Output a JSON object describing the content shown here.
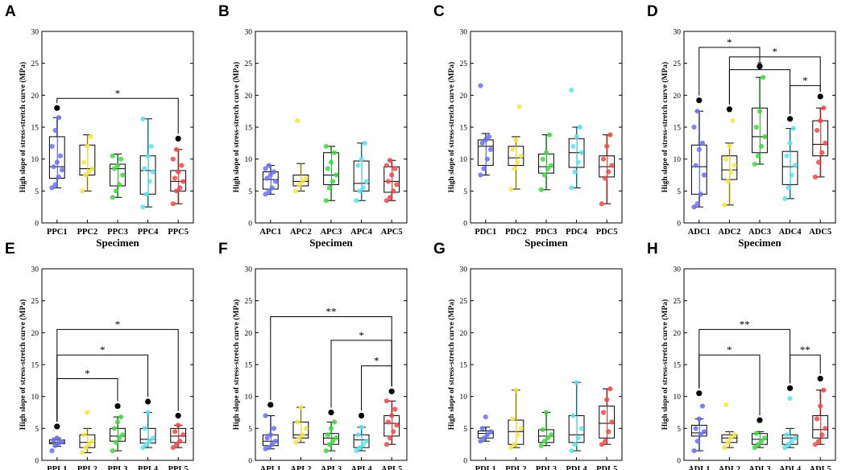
{
  "figure": {
    "xlabel": "Specimen",
    "ylabel": "High slope of stress-stretch curve (MPa)",
    "ylim": [
      0,
      30
    ],
    "yticks": [
      0,
      5,
      10,
      15,
      20,
      25,
      30
    ],
    "series_colors": [
      "#3d4fd8",
      "#d9c800",
      "#16a816",
      "#16b8c4",
      "#d21e1e"
    ],
    "point_colors": [
      "#6b6ff0",
      "#f2e64a",
      "#45d645",
      "#5fe3ea",
      "#ea4a4a"
    ]
  },
  "chart_data": [
    {
      "panel": "A",
      "type": "box",
      "categories": [
        "PPC1",
        "PPC2",
        "PPC3",
        "PPC4",
        "PPC5"
      ],
      "series": [
        {
          "name": "PPC1",
          "whisker_low": 5.5,
          "q1": 7.0,
          "median": 8.8,
          "q3": 13.5,
          "whisker_high": 16.5,
          "outliers": [
            18.0
          ],
          "points": [
            5.5,
            6.0,
            7.2,
            8.3,
            8.8,
            9.5,
            10.5,
            12.0,
            14.5,
            16.5
          ]
        },
        {
          "name": "PPC2",
          "whisker_low": 5.0,
          "q1": 7.5,
          "median": 8.5,
          "q3": 12.2,
          "whisker_high": 13.8,
          "outliers": [],
          "points": [
            5.0,
            7.5,
            8.0,
            8.5,
            9.5,
            12.0,
            13.5
          ]
        },
        {
          "name": "PPC3",
          "whisker_low": 4.0,
          "q1": 5.8,
          "median": 8.5,
          "q3": 9.2,
          "whisker_high": 10.8,
          "outliers": [],
          "points": [
            4.0,
            5.0,
            6.0,
            7.5,
            8.5,
            9.0,
            10.0,
            10.5
          ]
        },
        {
          "name": "PPC4",
          "whisker_low": 2.5,
          "q1": 4.5,
          "median": 8.2,
          "q3": 10.5,
          "whisker_high": 16.3,
          "outliers": [],
          "points": [
            2.5,
            4.5,
            6.5,
            8.0,
            8.5,
            10.5,
            12.0,
            16.3
          ]
        },
        {
          "name": "PPC5",
          "whisker_low": 3.0,
          "q1": 5.0,
          "median": 6.5,
          "q3": 8.2,
          "whisker_high": 11.5,
          "outliers": [
            13.2
          ],
          "points": [
            3.0,
            5.0,
            5.5,
            6.5,
            7.0,
            8.0,
            9.0,
            10.0,
            11.5
          ]
        }
      ],
      "significance": [
        {
          "from": 1,
          "to": 5,
          "y": 19.5,
          "label": "*"
        }
      ]
    },
    {
      "panel": "B",
      "type": "box",
      "categories": [
        "APC1",
        "APC2",
        "APC3",
        "APC4",
        "APC5"
      ],
      "series": [
        {
          "name": "APC1",
          "whisker_low": 4.5,
          "q1": 5.3,
          "median": 6.8,
          "q3": 8.0,
          "whisker_high": 9.0,
          "outliers": [],
          "points": [
            4.5,
            5.0,
            5.5,
            6.5,
            7.0,
            7.5,
            8.0,
            8.5,
            9.0
          ]
        },
        {
          "name": "APC2",
          "whisker_low": 5.0,
          "q1": 5.8,
          "median": 6.5,
          "q3": 7.5,
          "whisker_high": 9.3,
          "outliers": [],
          "points": [
            5.0,
            6.0,
            6.5,
            7.0,
            16.0
          ]
        },
        {
          "name": "APC3",
          "whisker_low": 3.5,
          "q1": 6.0,
          "median": 7.5,
          "q3": 11.0,
          "whisker_high": 12.0,
          "outliers": [],
          "points": [
            3.5,
            5.5,
            6.5,
            7.5,
            8.5,
            9.5,
            11.0,
            12.0
          ]
        },
        {
          "name": "APC4",
          "whisker_low": 3.5,
          "q1": 5.0,
          "median": 6.2,
          "q3": 9.7,
          "whisker_high": 12.5,
          "outliers": [],
          "points": [
            3.5,
            5.0,
            5.5,
            6.5,
            9.0,
            10.0,
            12.5
          ]
        },
        {
          "name": "APC5",
          "whisker_low": 3.5,
          "q1": 4.8,
          "median": 6.5,
          "q3": 8.8,
          "whisker_high": 9.8,
          "outliers": [],
          "points": [
            3.5,
            4.0,
            5.0,
            6.0,
            6.5,
            7.5,
            8.5,
            9.0,
            9.8
          ]
        }
      ],
      "significance": []
    },
    {
      "panel": "C",
      "type": "box",
      "categories": [
        "PDC1",
        "PDC2",
        "PDC3",
        "PDC4",
        "PDC5"
      ],
      "series": [
        {
          "name": "PDC1",
          "whisker_low": 7.5,
          "q1": 9.0,
          "median": 12.0,
          "q3": 13.0,
          "whisker_high": 14.0,
          "outliers": [],
          "points": [
            7.5,
            8.5,
            10.0,
            11.5,
            12.5,
            13.0,
            13.5,
            21.5
          ]
        },
        {
          "name": "PDC2",
          "whisker_low": 5.3,
          "q1": 9.0,
          "median": 10.2,
          "q3": 12.0,
          "whisker_high": 13.5,
          "outliers": [],
          "points": [
            5.3,
            8.5,
            9.5,
            10.5,
            11.5,
            13.0,
            18.2
          ]
        },
        {
          "name": "PDC3",
          "whisker_low": 5.2,
          "q1": 7.8,
          "median": 8.8,
          "q3": 10.8,
          "whisker_high": 13.8,
          "outliers": [],
          "points": [
            5.2,
            7.5,
            8.5,
            9.0,
            10.0,
            11.0,
            13.8
          ]
        },
        {
          "name": "PDC4",
          "whisker_low": 5.5,
          "q1": 8.7,
          "median": 11.0,
          "q3": 13.2,
          "whisker_high": 15.0,
          "outliers": [],
          "points": [
            5.5,
            8.0,
            9.5,
            11.0,
            12.0,
            13.5,
            15.0,
            20.8
          ]
        },
        {
          "name": "PDC5",
          "whisker_low": 3.0,
          "q1": 7.2,
          "median": 8.8,
          "q3": 10.5,
          "whisker_high": 13.8,
          "outliers": [],
          "points": [
            3.0,
            7.0,
            8.0,
            9.0,
            10.0,
            12.0,
            13.8
          ]
        }
      ],
      "significance": []
    },
    {
      "panel": "D",
      "type": "box",
      "categories": [
        "ADC1",
        "ADC2",
        "ADC3",
        "ADC4",
        "ADC5"
      ],
      "series": [
        {
          "name": "ADC1",
          "whisker_low": 2.5,
          "q1": 4.5,
          "median": 8.8,
          "q3": 12.2,
          "whisker_high": 17.5,
          "outliers": [
            19.2
          ],
          "points": [
            2.5,
            3.0,
            4.5,
            7.5,
            9.0,
            11.5,
            12.5,
            15.0,
            17.5
          ]
        },
        {
          "name": "ADC2",
          "whisker_low": 2.8,
          "q1": 6.8,
          "median": 8.3,
          "q3": 10.5,
          "whisker_high": 12.5,
          "outliers": [
            17.8
          ],
          "points": [
            2.8,
            6.5,
            8.0,
            9.0,
            10.0,
            12.0,
            16.0
          ]
        },
        {
          "name": "ADC3",
          "whisker_low": 9.2,
          "q1": 11.0,
          "median": 13.5,
          "q3": 18.0,
          "whisker_high": 22.8,
          "outliers": [
            24.5
          ],
          "points": [
            9.2,
            10.5,
            12.0,
            13.5,
            15.0,
            17.5,
            22.8
          ]
        },
        {
          "name": "ADC4",
          "whisker_low": 3.8,
          "q1": 6.0,
          "median": 8.8,
          "q3": 11.2,
          "whisker_high": 14.8,
          "outliers": [
            16.3
          ],
          "points": [
            3.8,
            5.5,
            7.5,
            9.0,
            10.5,
            12.5,
            14.8
          ]
        },
        {
          "name": "ADC5",
          "whisker_low": 7.2,
          "q1": 10.5,
          "median": 12.3,
          "q3": 16.0,
          "whisker_high": 18.0,
          "outliers": [
            19.8
          ],
          "points": [
            7.2,
            9.5,
            11.0,
            12.5,
            14.5,
            16.0,
            18.0
          ]
        }
      ],
      "significance": [
        {
          "from": 1,
          "to": 3,
          "y": 27.5,
          "label": "*"
        },
        {
          "from": 2,
          "to": 5,
          "y": 26.0,
          "label": "*"
        },
        {
          "from": 2,
          "to": 4,
          "y": 24.0,
          "label": "*"
        },
        {
          "from": 4,
          "to": 5,
          "y": 21.5,
          "label": "*"
        }
      ]
    },
    {
      "panel": "E",
      "type": "box",
      "categories": [
        "PPL1",
        "PPL2",
        "PPL3",
        "PPL4",
        "PPL5"
      ],
      "series": [
        {
          "name": "PPL1",
          "whisker_low": 2.2,
          "q1": 2.6,
          "median": 2.8,
          "q3": 3.2,
          "whisker_high": 3.5,
          "outliers": [
            5.3
          ],
          "points": [
            1.5,
            2.3,
            2.7,
            2.9,
            3.2,
            3.5
          ]
        },
        {
          "name": "PPL2",
          "whisker_low": 1.2,
          "q1": 2.0,
          "median": 2.8,
          "q3": 4.0,
          "whisker_high": 5.0,
          "outliers": [],
          "points": [
            1.2,
            2.0,
            2.5,
            3.0,
            4.0,
            7.5
          ]
        },
        {
          "name": "PPL3",
          "whisker_low": 1.5,
          "q1": 3.0,
          "median": 3.8,
          "q3": 5.0,
          "whisker_high": 6.8,
          "outliers": [
            8.5
          ],
          "points": [
            1.5,
            2.8,
            3.5,
            4.0,
            5.0,
            6.0,
            6.8
          ]
        },
        {
          "name": "PPL4",
          "whisker_low": 2.0,
          "q1": 2.7,
          "median": 3.3,
          "q3": 5.0,
          "whisker_high": 7.5,
          "outliers": [
            9.2
          ],
          "points": [
            2.0,
            2.5,
            3.0,
            3.5,
            5.0,
            7.5
          ]
        },
        {
          "name": "PPL5",
          "whisker_low": 2.0,
          "q1": 2.8,
          "median": 3.8,
          "q3": 5.0,
          "whisker_high": 5.5,
          "outliers": [
            7.0
          ],
          "points": [
            2.0,
            2.5,
            3.0,
            4.0,
            4.5,
            5.5
          ]
        }
      ],
      "significance": [
        {
          "from": 1,
          "to": 5,
          "y": 20.5,
          "label": "*"
        },
        {
          "from": 1,
          "to": 4,
          "y": 16.5,
          "label": "*"
        },
        {
          "from": 1,
          "to": 3,
          "y": 12.8,
          "label": "*"
        }
      ]
    },
    {
      "panel": "F",
      "type": "box",
      "categories": [
        "APL1",
        "APL2",
        "APL3",
        "APL4",
        "APL5"
      ],
      "series": [
        {
          "name": "APL1",
          "whisker_low": 1.8,
          "q1": 2.3,
          "median": 3.0,
          "q3": 4.0,
          "whisker_high": 7.0,
          "outliers": [
            8.7
          ],
          "points": [
            1.8,
            2.0,
            2.5,
            3.0,
            3.5,
            4.0,
            5.0,
            7.0
          ]
        },
        {
          "name": "APL2",
          "whisker_low": 2.8,
          "q1": 3.5,
          "median": 4.0,
          "q3": 6.0,
          "whisker_high": 8.3,
          "outliers": [],
          "points": [
            2.8,
            3.5,
            4.0,
            5.0,
            6.0,
            8.3
          ]
        },
        {
          "name": "APL3",
          "whisker_low": 1.5,
          "q1": 2.5,
          "median": 3.5,
          "q3": 4.2,
          "whisker_high": 6.0,
          "outliers": [
            7.5
          ],
          "points": [
            1.5,
            2.5,
            3.0,
            3.5,
            4.0,
            5.0,
            6.0
          ]
        },
        {
          "name": "APL4",
          "whisker_low": 1.5,
          "q1": 2.0,
          "median": 3.2,
          "q3": 4.0,
          "whisker_high": 5.2,
          "outliers": [
            7.0
          ],
          "points": [
            1.5,
            2.0,
            2.5,
            3.0,
            4.0,
            5.2
          ]
        },
        {
          "name": "APL5",
          "whisker_low": 2.5,
          "q1": 3.8,
          "median": 5.8,
          "q3": 7.0,
          "whisker_high": 9.3,
          "outliers": [
            10.8
          ],
          "points": [
            2.5,
            3.5,
            4.5,
            5.5,
            6.0,
            7.0,
            8.0,
            9.3
          ]
        }
      ],
      "significance": [
        {
          "from": 1,
          "to": 5,
          "y": 22.5,
          "label": "**"
        },
        {
          "from": 3,
          "to": 5,
          "y": 18.8,
          "label": "*"
        },
        {
          "from": 4,
          "to": 5,
          "y": 14.8,
          "label": "*"
        }
      ]
    },
    {
      "panel": "G",
      "type": "box",
      "categories": [
        "PDL1",
        "PDL2",
        "PDL3",
        "PDL4",
        "PDL5"
      ],
      "series": [
        {
          "name": "PDL1",
          "whisker_low": 3.0,
          "q1": 3.5,
          "median": 4.2,
          "q3": 4.6,
          "whisker_high": 5.2,
          "outliers": [],
          "points": [
            3.0,
            3.5,
            4.0,
            4.5,
            5.0,
            6.8
          ]
        },
        {
          "name": "PDL2",
          "whisker_low": 2.0,
          "q1": 2.5,
          "median": 4.5,
          "q3": 6.3,
          "whisker_high": 11.0,
          "outliers": [],
          "points": [
            2.0,
            2.5,
            4.0,
            5.0,
            6.5,
            11.0
          ]
        },
        {
          "name": "PDL3",
          "whisker_low": 2.3,
          "q1": 2.8,
          "median": 3.8,
          "q3": 4.8,
          "whisker_high": 7.5,
          "outliers": [],
          "points": [
            2.3,
            3.0,
            3.5,
            4.0,
            4.8,
            7.5
          ]
        },
        {
          "name": "PDL4",
          "whisker_low": 1.5,
          "q1": 2.8,
          "median": 4.0,
          "q3": 7.0,
          "whisker_high": 12.2,
          "outliers": [],
          "points": [
            1.5,
            2.5,
            3.5,
            5.0,
            7.0,
            12.2
          ]
        },
        {
          "name": "PDL5",
          "whisker_low": 2.5,
          "q1": 3.5,
          "median": 5.8,
          "q3": 8.5,
          "whisker_high": 11.2,
          "outliers": [],
          "points": [
            2.5,
            3.0,
            4.5,
            6.0,
            7.5,
            9.5,
            11.2
          ]
        }
      ],
      "significance": []
    },
    {
      "panel": "H",
      "type": "box",
      "categories": [
        "ADL1",
        "ADL2",
        "ADL3",
        "ADL4",
        "ADL5"
      ],
      "series": [
        {
          "name": "ADL1",
          "whisker_low": 1.5,
          "q1": 3.8,
          "median": 4.3,
          "q3": 5.5,
          "whisker_high": 6.5,
          "outliers": [
            10.5
          ],
          "points": [
            1.5,
            3.0,
            4.0,
            4.5,
            5.0,
            6.5,
            8.5
          ]
        },
        {
          "name": "ADL2",
          "whisker_low": 2.0,
          "q1": 2.8,
          "median": 3.5,
          "q3": 4.0,
          "whisker_high": 4.5,
          "outliers": [],
          "points": [
            2.0,
            2.8,
            3.5,
            4.0,
            8.7
          ]
        },
        {
          "name": "ADL3",
          "whisker_low": 2.0,
          "q1": 2.5,
          "median": 3.3,
          "q3": 4.2,
          "whisker_high": 4.5,
          "outliers": [
            6.3
          ],
          "points": [
            2.0,
            2.5,
            3.0,
            3.5,
            4.2
          ]
        },
        {
          "name": "ADL4",
          "whisker_low": 2.0,
          "q1": 2.5,
          "median": 3.5,
          "q3": 4.0,
          "whisker_high": 5.0,
          "outliers": [
            11.3
          ],
          "points": [
            2.0,
            2.5,
            3.0,
            3.5,
            4.0,
            9.7
          ]
        },
        {
          "name": "ADL5",
          "whisker_low": 2.5,
          "q1": 3.5,
          "median": 4.8,
          "q3": 7.0,
          "whisker_high": 11.0,
          "outliers": [
            12.8
          ],
          "points": [
            2.5,
            3.0,
            4.0,
            5.0,
            6.5,
            8.5,
            11.0
          ]
        }
      ],
      "significance": [
        {
          "from": 1,
          "to": 4,
          "y": 20.5,
          "label": "**"
        },
        {
          "from": 1,
          "to": 3,
          "y": 16.5,
          "label": "*"
        },
        {
          "from": 4,
          "to": 5,
          "y": 16.5,
          "label": "**"
        }
      ]
    }
  ]
}
